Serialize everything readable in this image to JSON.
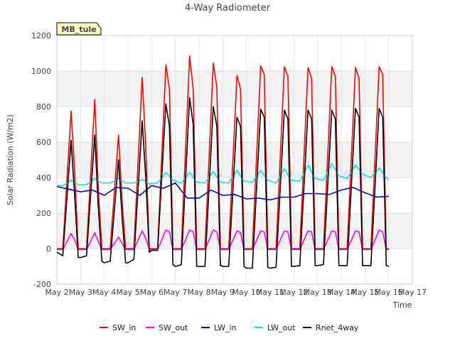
{
  "chart_data": {
    "type": "line",
    "title": "4-Way Radiometer",
    "xlabel": "Time",
    "ylabel": "Solar Radiation (W/m2)",
    "site_label": "MB_tule",
    "x_tick_labels": [
      "May 2",
      "May 3",
      "May 4",
      "May 5",
      "May 6",
      "May 7",
      "May 8",
      "May 9",
      "May 10",
      "May 11",
      "May 12",
      "May 13",
      "May 14",
      "May 15",
      "May 16",
      "May 17"
    ],
    "xlim": [
      2,
      17
    ],
    "ylim": [
      -200,
      1200
    ],
    "y_ticks": [
      -200,
      0,
      200,
      400,
      600,
      800,
      1000,
      1200
    ],
    "background_bands": "alternating light gray",
    "grid": true,
    "legend_position": "bottom",
    "series": [
      {
        "name": "SW_in",
        "color": "#ff0000",
        "x": [
          2.0,
          2.25,
          2.6,
          2.75,
          2.9,
          3.0,
          3.25,
          3.6,
          3.75,
          3.9,
          4.0,
          4.25,
          4.6,
          4.75,
          4.9,
          5.0,
          5.25,
          5.6,
          5.75,
          5.9,
          6.0,
          6.25,
          6.6,
          6.75,
          6.9,
          7.0,
          7.25,
          7.6,
          7.75,
          7.9,
          8.0,
          8.25,
          8.6,
          8.75,
          8.9,
          9.0,
          9.25,
          9.6,
          9.75,
          9.9,
          10.0,
          10.25,
          10.6,
          10.75,
          10.9,
          11.0,
          11.25,
          11.6,
          11.75,
          11.9,
          12.0,
          12.25,
          12.6,
          12.75,
          12.9,
          13.0,
          13.25,
          13.6,
          13.75,
          13.9,
          14.0,
          14.25,
          14.6,
          14.75,
          14.9,
          15.0,
          15.25,
          15.6,
          15.75,
          15.9,
          16.0
        ],
        "y": [
          0,
          0,
          775,
          440,
          0,
          0,
          0,
          840,
          330,
          0,
          0,
          0,
          640,
          270,
          0,
          0,
          0,
          965,
          575,
          0,
          0,
          0,
          1035,
          900,
          0,
          0,
          0,
          1085,
          900,
          0,
          0,
          0,
          1045,
          910,
          0,
          0,
          0,
          975,
          900,
          0,
          0,
          0,
          1030,
          980,
          0,
          0,
          0,
          1025,
          970,
          0,
          0,
          0,
          1020,
          960,
          0,
          0,
          0,
          1025,
          970,
          0,
          0,
          0,
          1020,
          960,
          0,
          0,
          0,
          1025,
          980,
          0,
          0
        ]
      },
      {
        "name": "SW_out",
        "color": "#ff00ff",
        "x": [
          2.0,
          2.25,
          2.6,
          2.75,
          2.9,
          3.0,
          3.25,
          3.6,
          3.75,
          3.9,
          4.0,
          4.25,
          4.6,
          4.75,
          4.9,
          5.0,
          5.25,
          5.6,
          5.75,
          5.9,
          6.0,
          6.25,
          6.6,
          6.75,
          6.9,
          7.0,
          7.25,
          7.6,
          7.75,
          7.9,
          8.0,
          8.25,
          8.6,
          8.75,
          8.9,
          9.0,
          9.25,
          9.6,
          9.75,
          9.9,
          10.0,
          10.25,
          10.6,
          10.75,
          10.9,
          11.0,
          11.25,
          11.6,
          11.75,
          11.9,
          12.0,
          12.25,
          12.6,
          12.75,
          12.9,
          13.0,
          13.25,
          13.6,
          13.75,
          13.9,
          14.0,
          14.25,
          14.6,
          14.75,
          14.9,
          15.0,
          15.25,
          15.6,
          15.75,
          15.9,
          16.0
        ],
        "y": [
          -5,
          -5,
          85,
          50,
          -5,
          -5,
          -5,
          90,
          40,
          -5,
          -5,
          -5,
          65,
          30,
          -5,
          -5,
          -5,
          100,
          60,
          -5,
          -5,
          -5,
          105,
          95,
          -5,
          -5,
          -5,
          105,
          95,
          -5,
          -5,
          -5,
          105,
          95,
          -5,
          -5,
          -5,
          100,
          90,
          -5,
          -5,
          -5,
          100,
          95,
          -5,
          -5,
          -5,
          100,
          95,
          -5,
          -5,
          -5,
          100,
          95,
          -5,
          -5,
          -5,
          100,
          95,
          -5,
          -5,
          -5,
          100,
          95,
          -5,
          -5,
          -5,
          105,
          95,
          -5,
          -5
        ]
      },
      {
        "name": "LW_in",
        "color": "#0000dd",
        "x": [
          2.0,
          2.5,
          3.0,
          3.5,
          4.0,
          4.5,
          5.0,
          5.5,
          6.0,
          6.5,
          7.0,
          7.5,
          8.0,
          8.5,
          9.0,
          9.5,
          10.0,
          10.5,
          11.0,
          11.5,
          12.0,
          12.5,
          13.0,
          13.5,
          14.0,
          14.5,
          15.0,
          15.5,
          16.0
        ],
        "y": [
          350,
          335,
          320,
          330,
          300,
          345,
          340,
          300,
          355,
          340,
          370,
          285,
          285,
          330,
          300,
          305,
          280,
          285,
          275,
          290,
          290,
          310,
          310,
          305,
          330,
          345,
          315,
          290,
          295
        ]
      },
      {
        "name": "LW_out",
        "color": "#00e5e5",
        "x": [
          2.0,
          2.25,
          2.6,
          2.9,
          3.25,
          3.6,
          3.9,
          4.25,
          4.6,
          4.9,
          5.25,
          5.6,
          5.9,
          6.25,
          6.6,
          6.9,
          7.25,
          7.6,
          7.9,
          8.25,
          8.6,
          8.9,
          9.25,
          9.6,
          9.9,
          10.25,
          10.6,
          10.9,
          11.25,
          11.6,
          11.9,
          12.25,
          12.6,
          12.9,
          13.25,
          13.6,
          13.9,
          14.25,
          14.6,
          14.9,
          15.25,
          15.6,
          15.9,
          16.0
        ],
        "y": [
          355,
          355,
          385,
          360,
          360,
          395,
          370,
          370,
          395,
          370,
          370,
          390,
          365,
          370,
          430,
          385,
          370,
          430,
          375,
          370,
          435,
          375,
          370,
          440,
          380,
          375,
          440,
          385,
          370,
          450,
          385,
          380,
          470,
          395,
          385,
          480,
          410,
          395,
          470,
          420,
          400,
          455,
          400,
          390
        ]
      },
      {
        "name": "Rnet_4way",
        "color": "#000000",
        "x": [
          2.0,
          2.25,
          2.6,
          2.75,
          2.9,
          3.0,
          3.25,
          3.6,
          3.75,
          3.9,
          4.0,
          4.25,
          4.6,
          4.75,
          4.9,
          5.0,
          5.25,
          5.6,
          5.75,
          5.9,
          6.0,
          6.25,
          6.6,
          6.75,
          6.9,
          7.0,
          7.25,
          7.6,
          7.75,
          7.9,
          8.0,
          8.25,
          8.6,
          8.75,
          8.9,
          9.0,
          9.25,
          9.6,
          9.75,
          9.9,
          10.0,
          10.25,
          10.6,
          10.75,
          10.9,
          11.0,
          11.25,
          11.6,
          11.75,
          11.9,
          12.0,
          12.25,
          12.6,
          12.75,
          12.9,
          13.0,
          13.25,
          13.6,
          13.75,
          13.9,
          14.0,
          14.25,
          14.6,
          14.75,
          14.9,
          15.0,
          15.25,
          15.6,
          15.75,
          15.9,
          16.0
        ],
        "y": [
          -20,
          -40,
          610,
          300,
          -50,
          -50,
          -40,
          640,
          230,
          -70,
          -80,
          -70,
          500,
          180,
          -80,
          -80,
          -60,
          720,
          400,
          -20,
          -10,
          -10,
          815,
          690,
          -90,
          -100,
          -90,
          850,
          700,
          -100,
          -100,
          -100,
          800,
          690,
          -95,
          -100,
          -100,
          740,
          690,
          -100,
          -110,
          -110,
          785,
          740,
          -105,
          -110,
          -105,
          780,
          730,
          -100,
          -100,
          -95,
          780,
          730,
          -95,
          -95,
          -90,
          780,
          730,
          -95,
          -95,
          -95,
          790,
          740,
          -95,
          -95,
          -95,
          790,
          740,
          -95,
          -100
        ]
      }
    ]
  }
}
